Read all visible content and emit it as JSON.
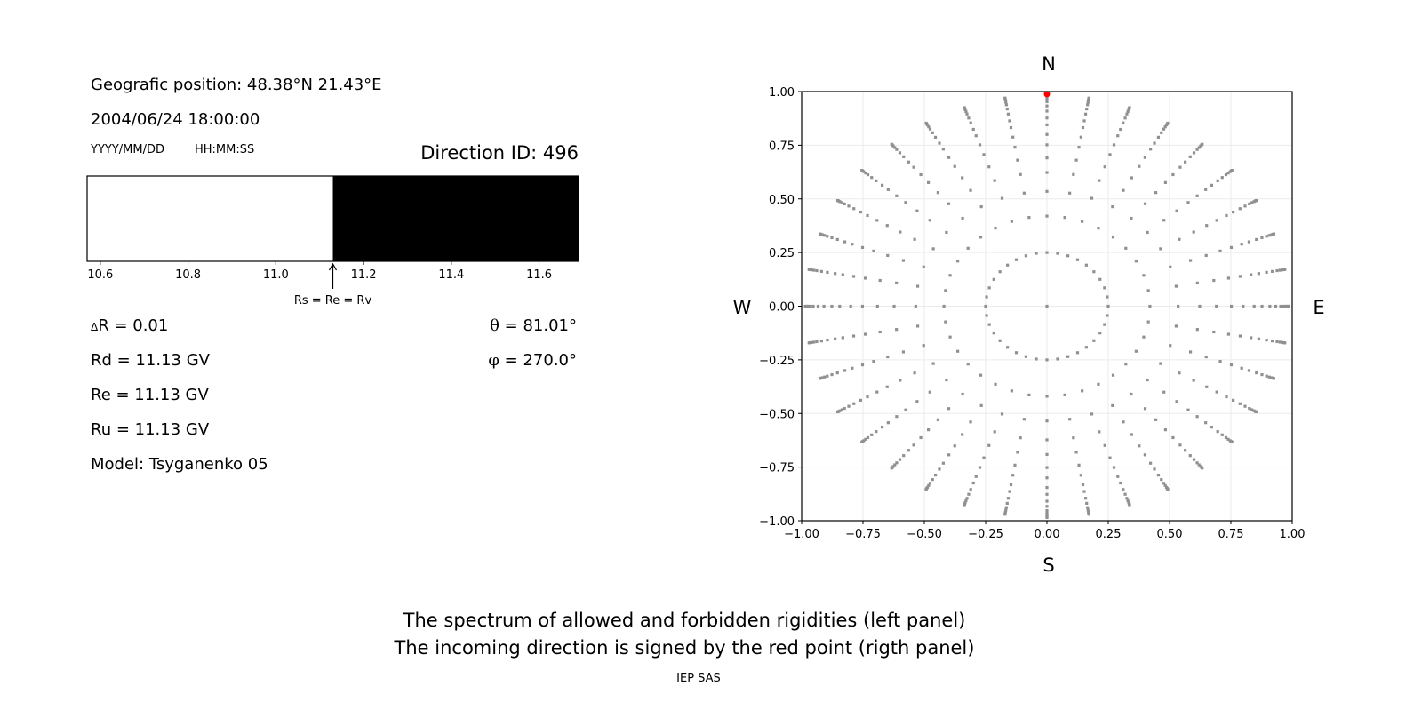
{
  "left_panel": {
    "geo_position": "Geografic position: 48.38°N 21.43°E",
    "datetime": "2004/06/24 18:00:00",
    "date_format": "YYYY/MM/DD",
    "time_format": "HH:MM:SS",
    "direction_id": "Direction ID: 496",
    "delta_r_symbol": "Δ",
    "delta_r": "R = 0.01",
    "rd": "Rd = 11.13 GV",
    "re": "Re = 11.13 GV",
    "ru": "Ru = 11.13 GV",
    "model": "Model: Tsyganenko 05",
    "theta_symbol": "θ",
    "theta": " = 81.01°",
    "phi_symbol": "φ",
    "phi": " = 270.0°"
  },
  "chart_data": [
    {
      "type": "bar",
      "xlim": [
        10.57,
        11.69
      ],
      "xticks": [
        "10.6",
        "10.8",
        "11.0",
        "11.2",
        "11.4",
        "11.6"
      ],
      "segments": [
        {
          "from": 10.57,
          "to": 11.13,
          "color": "#ffffff",
          "meaning": "allowed"
        },
        {
          "from": 11.13,
          "to": 11.69,
          "color": "#000000",
          "meaning": "forbidden"
        }
      ],
      "annotation": {
        "x": 11.13,
        "text": "Rs = Re = Rv"
      }
    },
    {
      "type": "scatter",
      "xlim": [
        -1.0,
        1.0
      ],
      "ylim": [
        -1.0,
        1.0
      ],
      "xticks": [
        "−1.00",
        "−0.75",
        "−0.50",
        "−0.25",
        "0.00",
        "0.25",
        "0.50",
        "0.75",
        "1.00"
      ],
      "yticks": [
        "−1.00",
        "−0.75",
        "−0.50",
        "−0.25",
        "0.00",
        "0.25",
        "0.50",
        "0.75",
        "1.00"
      ],
      "grid": true,
      "compass": {
        "north": "N",
        "south": "S",
        "west": "W",
        "east": "E"
      },
      "point_color": "#909090",
      "highlight_color": "#ff0000",
      "azimuth_step_deg": 10,
      "radii": [
        0.25,
        0.42,
        0.535,
        0.623,
        0.691,
        0.752,
        0.8,
        0.845,
        0.877,
        0.909,
        0.933,
        0.953,
        0.965,
        0.975,
        0.981,
        0.985
      ],
      "center_point": [
        0,
        0
      ],
      "highlight_point": [
        0,
        0.988
      ]
    }
  ],
  "caption": {
    "line1": "The spectrum of allowed and forbidden rigidities (left panel)",
    "line2": "The incoming direction is signed by the red point (rigth panel)",
    "credit": "IEP SAS"
  }
}
